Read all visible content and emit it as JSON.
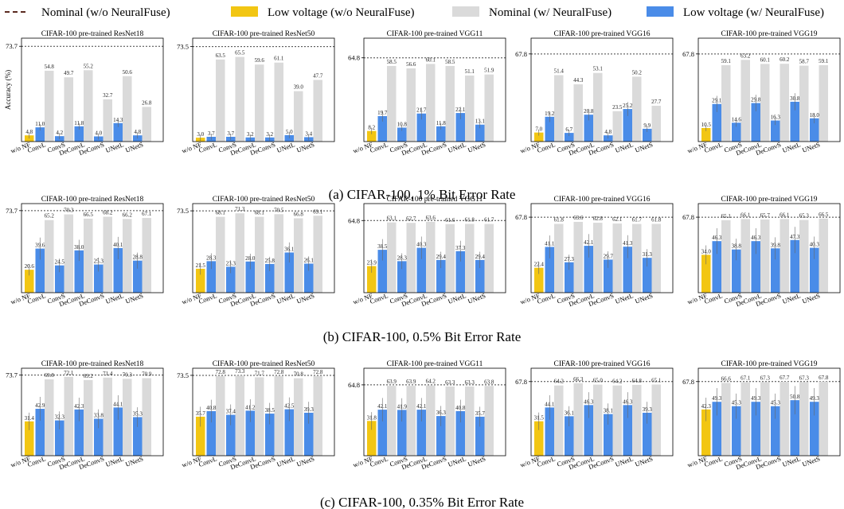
{
  "legend": [
    {
      "label": "Nominal (w/o NeuralFuse)",
      "kind": "dashed-line",
      "color": "#5a2a20"
    },
    {
      "label": "Low voltage (w/o NeuralFuse)",
      "kind": "box",
      "color": "#f2c613"
    },
    {
      "label": "Nominal (w/ NeuralFuse)",
      "kind": "box",
      "color": "#dadada"
    },
    {
      "label": "Low voltage (w/ NeuralFuse)",
      "kind": "box",
      "color": "#4a8ce8"
    }
  ],
  "colors": {
    "baseline_bar": "#f2c613",
    "nominal_bar": "#dadada",
    "low_bar": "#4a8ce8",
    "error_bar": "#666666",
    "nominal_line": "#444444"
  },
  "ylabel": "Accuracy (%)",
  "chart_data": {
    "type": "bar",
    "ylim": [
      0,
      80
    ],
    "grid": false,
    "legend_position": "top",
    "models": [
      "ResNet18",
      "ResNet50",
      "VGG11",
      "VGG16",
      "VGG19"
    ],
    "panel_titles": [
      "CIFAR-100 pre-trained ResNet18",
      "CIFAR-100 pre-trained ResNet50",
      "CIFAR-100 pre-trained VGG11",
      "CIFAR-100 pre-trained VGG16",
      "CIFAR-100 pre-trained VGG19"
    ],
    "nominal": [
      "73.7",
      "73.5",
      "64.8",
      "67.8",
      "67.8"
    ],
    "categories": [
      "w/o NF",
      "ConvL",
      "ConvS",
      "DeConvL",
      "DeConvS",
      "UNetL",
      "UNetS"
    ],
    "rows": [
      {
        "caption": "(a) CIFAR-100, 1% Bit Error Rate",
        "panels": [
          {
            "baseline": "4.8",
            "pairs": [
              [
                "11.0",
                "54.8"
              ],
              [
                "4.2",
                "49.7"
              ],
              [
                "11.8",
                "55.2"
              ],
              [
                "4.0",
                "32.7"
              ],
              [
                "14.3",
                "50.6"
              ],
              [
                "4.8",
                "26.8"
              ]
            ]
          },
          {
            "baseline": "3.0",
            "pairs": [
              [
                "3.7",
                "63.5"
              ],
              [
                "3.7",
                "65.5"
              ],
              [
                "3.2",
                "59.6"
              ],
              [
                "3.2",
                "61.1"
              ],
              [
                "5.0",
                "39.0"
              ],
              [
                "3.4",
                "47.7"
              ]
            ]
          },
          {
            "baseline": "8.2",
            "pairs": [
              [
                "19.7",
                "58.5"
              ],
              [
                "10.8",
                "56.6"
              ],
              [
                "21.7",
                "60.1"
              ],
              [
                "11.8",
                "58.5"
              ],
              [
                "22.1",
                "51.1"
              ],
              [
                "13.1",
                "51.9"
              ]
            ]
          },
          {
            "baseline": "7.0",
            "pairs": [
              [
                "19.2",
                "51.4"
              ],
              [
                "6.7",
                "44.3"
              ],
              [
                "20.8",
                "53.1"
              ],
              [
                "4.8",
                "23.5"
              ],
              [
                "25.2",
                "50.2"
              ],
              [
                "9.9",
                "27.7"
              ]
            ]
          },
          {
            "baseline": "10.5",
            "pairs": [
              [
                "29.1",
                "59.1"
              ],
              [
                "14.6",
                "63.2"
              ],
              [
                "29.8",
                "60.1"
              ],
              [
                "16.3",
                "60.2"
              ],
              [
                "30.8",
                "58.7"
              ],
              [
                "18.0",
                "59.1"
              ]
            ]
          }
        ]
      },
      {
        "caption": "(b) CIFAR-100, 0.5% Bit Error Rate",
        "panels": [
          {
            "baseline": "20.6",
            "pairs": [
              [
                "39.6",
                "65.2"
              ],
              [
                "24.5",
                "70.3"
              ],
              [
                "38.0",
                "66.5"
              ],
              [
                "25.3",
                "68.2"
              ],
              [
                "40.1",
                "66.2"
              ],
              [
                "28.8",
                "67.1"
              ]
            ]
          },
          {
            "baseline": "21.5",
            "pairs": [
              [
                "28.3",
                "68.1"
              ],
              [
                "23.3",
                "71.3"
              ],
              [
                "28.0",
                "68.1"
              ],
              [
                "25.8",
                "70.5"
              ],
              [
                "36.1",
                "66.8"
              ],
              [
                "26.1",
                "69.1"
              ]
            ]
          },
          {
            "baseline": "23.9",
            "pairs": [
              [
                "38.5",
                "63.1"
              ],
              [
                "28.3",
                "62.7"
              ],
              [
                "40.3",
                "63.6"
              ],
              [
                "29.4",
                "61.6"
              ],
              [
                "37.3",
                "61.8"
              ],
              [
                "29.4",
                "61.7"
              ]
            ]
          },
          {
            "baseline": "22.4",
            "pairs": [
              [
                "41.1",
                "61.8"
              ],
              [
                "27.3",
                "63.6"
              ],
              [
                "42.1",
                "62.8"
              ],
              [
                "29.7",
                "62.1"
              ],
              [
                "41.3",
                "61.7"
              ],
              [
                "31.3",
                "61.8"
              ]
            ]
          },
          {
            "baseline": "34.0",
            "pairs": [
              [
                "46.3",
                "65.1"
              ],
              [
                "38.8",
                "66.1"
              ],
              [
                "46.3",
                "65.7"
              ],
              [
                "39.8",
                "66.1"
              ],
              [
                "47.3",
                "65.3"
              ],
              [
                "40.3",
                "66.5"
              ]
            ]
          }
        ]
      },
      {
        "caption": "(c) CIFAR-100, 0.35% Bit Error Rate",
        "panels": [
          {
            "baseline": "31.4",
            "pairs": [
              [
                "42.9",
                "69.8"
              ],
              [
                "32.3",
                "72.1"
              ],
              [
                "42.3",
                "69.2"
              ],
              [
                "33.8",
                "71.4"
              ],
              [
                "44.1",
                "70.3"
              ],
              [
                "35.3",
                "70.9"
              ]
            ]
          },
          {
            "baseline": "35.7",
            "pairs": [
              [
                "40.8",
                "72.8"
              ],
              [
                "37.4",
                "73.3"
              ],
              [
                "41.2",
                "71.7"
              ],
              [
                "38.5",
                "72.8"
              ],
              [
                "42.5",
                "70.8"
              ],
              [
                "39.3",
                "72.8"
              ]
            ]
          },
          {
            "baseline": "31.8",
            "pairs": [
              [
                "42.1",
                "63.9"
              ],
              [
                "41.9",
                "63.9"
              ],
              [
                "42.1",
                "64.2"
              ],
              [
                "36.3",
                "63.3"
              ],
              [
                "40.8",
                "63.3"
              ],
              [
                "35.7",
                "63.8"
              ]
            ]
          },
          {
            "baseline": "31.5",
            "pairs": [
              [
                "44.1",
                "64.2"
              ],
              [
                "36.1",
                "66.3"
              ],
              [
                "46.3",
                "65.0"
              ],
              [
                "38.1",
                "64.2"
              ],
              [
                "46.3",
                "64.8"
              ],
              [
                "39.3",
                "65.1"
              ]
            ]
          },
          {
            "baseline": "42.3",
            "pairs": [
              [
                "49.3",
                "66.6"
              ],
              [
                "45.3",
                "67.1"
              ],
              [
                "49.3",
                "67.3"
              ],
              [
                "45.3",
                "67.7"
              ],
              [
                "50.8",
                "67.3"
              ],
              [
                "49.3",
                "67.8"
              ]
            ]
          }
        ]
      }
    ]
  }
}
